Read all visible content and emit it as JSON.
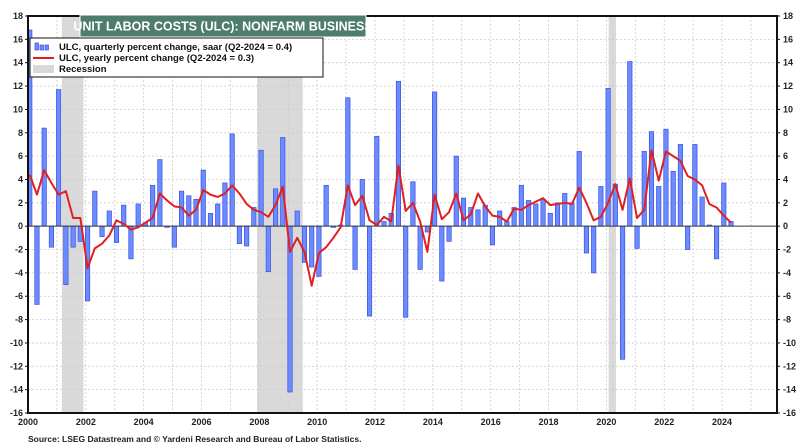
{
  "chart_data": {
    "type": "bar",
    "title": "UNIT LABOR COSTS (ULC): NONFARM BUSINESS",
    "source": "Source: LSEG Datastream and © Yardeni Research and Bureau of Labor Statistics.",
    "xlim": [
      2000,
      2025.9
    ],
    "ylim": [
      -16,
      18
    ],
    "x_tick_labels": [
      "2000",
      "2002",
      "2004",
      "2006",
      "2008",
      "2010",
      "2012",
      "2014",
      "2016",
      "2018",
      "2020",
      "2022",
      "2024"
    ],
    "y_ticks": [
      -16,
      -14,
      -12,
      -10,
      -8,
      -6,
      -4,
      -2,
      0,
      2,
      4,
      6,
      8,
      10,
      12,
      14,
      16,
      18
    ],
    "y_axis_sides": "both",
    "grid": true,
    "legend_placement": "top-left",
    "start_quarter": "2000-Q1",
    "series": [
      {
        "name": "ULC, quarterly percent change, saar (Q2-2024 = 0.4)",
        "kind": "bar",
        "color": "#6b8cff",
        "values": [
          16.8,
          -6.7,
          8.4,
          -1.8,
          11.7,
          -5.0,
          -1.8,
          -1.3,
          -6.4,
          3.0,
          -0.9,
          1.3,
          -1.4,
          1.8,
          -2.8,
          1.9,
          0.3,
          3.5,
          5.7,
          -0.1,
          -1.8,
          3.0,
          2.6,
          2.3,
          4.8,
          1.1,
          1.9,
          3.7,
          7.9,
          -1.5,
          -1.7,
          1.6,
          6.5,
          -3.9,
          3.2,
          7.6,
          -14.2,
          1.3,
          -3.1,
          -3.5,
          -4.3,
          3.5,
          -0.1,
          0.1,
          11.0,
          -3.7,
          4.0,
          -7.7,
          7.7,
          0.4,
          1.1,
          12.4,
          -7.8,
          3.8,
          -3.7,
          -0.5,
          11.5,
          -4.7,
          -1.3,
          6.0,
          2.4,
          1.6,
          1.4,
          1.8,
          -1.6,
          1.3,
          0.4,
          1.6,
          3.5,
          2.2,
          1.9,
          2.3,
          1.1,
          2.0,
          2.8,
          2.0,
          6.4,
          -2.3,
          -4.0,
          3.4,
          11.8,
          3.6,
          -11.4,
          14.1,
          -1.9,
          6.4,
          8.1,
          3.4,
          8.3,
          4.7,
          7.0,
          -2.0,
          7.0,
          2.5,
          0.1,
          -2.8,
          3.7,
          0.4
        ]
      },
      {
        "name": "ULC, yearly percent change (Q2-2024 = 0.3)",
        "kind": "line",
        "color": "#e02020",
        "values": [
          4.4,
          2.7,
          4.8,
          3.7,
          2.7,
          3.0,
          0.7,
          0.7,
          -3.6,
          -1.9,
          -1.5,
          -0.8,
          0.5,
          0.2,
          -0.3,
          -0.1,
          0.3,
          0.7,
          2.8,
          2.2,
          1.7,
          1.6,
          0.9,
          1.4,
          3.1,
          2.7,
          2.5,
          2.8,
          3.5,
          2.8,
          1.9,
          1.4,
          1.2,
          0.8,
          1.8,
          3.4,
          -2.2,
          -1.0,
          -2.2,
          -5.1,
          -2.3,
          -1.8,
          -1.0,
          -0.1,
          3.5,
          1.8,
          2.6,
          0.5,
          0.1,
          0.8,
          0.4,
          5.2,
          1.3,
          2.0,
          0.4,
          -2.2,
          2.7,
          0.6,
          1.2,
          2.8,
          0.5,
          1.0,
          2.8,
          1.7,
          0.9,
          0.8,
          0.4,
          1.5,
          1.4,
          1.8,
          2.1,
          2.4,
          1.8,
          1.9,
          2.0,
          1.9,
          3.3,
          2.0,
          0.5,
          0.8,
          2.0,
          3.6,
          1.4,
          4.1,
          0.7,
          1.4,
          6.5,
          3.9,
          6.4,
          6.0,
          5.6,
          4.3,
          4.0,
          3.5,
          1.9,
          1.6,
          0.9,
          0.3
        ]
      }
    ],
    "recession_label": "Recession",
    "recession_color": "#d9d9d9",
    "recessions": [
      [
        2001.17,
        2001.92
      ],
      [
        2007.92,
        2009.5
      ],
      [
        2020.08,
        2020.33
      ]
    ],
    "title_bg_color": "#4f7d6b"
  }
}
